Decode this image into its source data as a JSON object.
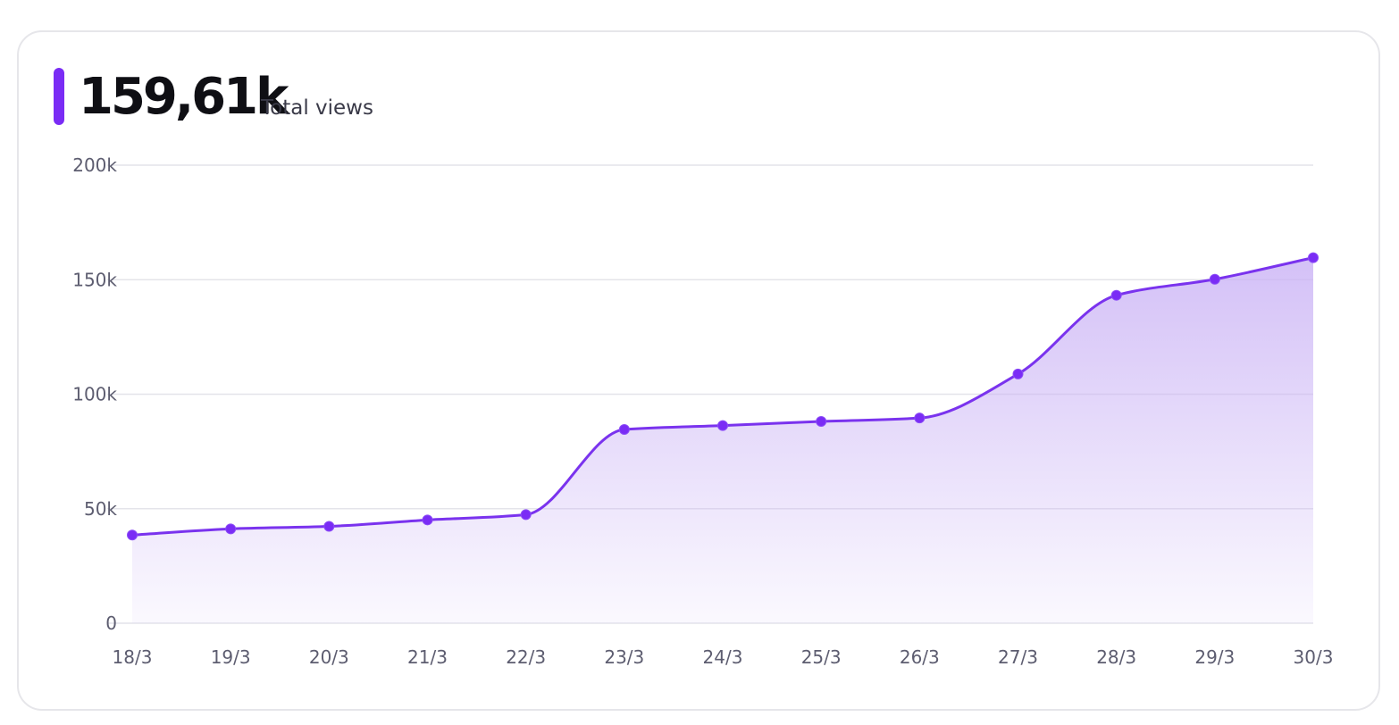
{
  "header": {
    "total_value": "159,61k",
    "total_label": "Total views"
  },
  "colors": {
    "accent": "#7a2cf5",
    "line": "#7a33ee",
    "area_top": "#c9b1f5",
    "grid": "#e4e4ea",
    "tick_text": "#5d5d70",
    "card_border": "#e6e6ea"
  },
  "chart_data": {
    "type": "area",
    "x": [
      "18/3",
      "19/3",
      "20/3",
      "21/3",
      "22/3",
      "23/3",
      "24/3",
      "25/3",
      "26/3",
      "27/3",
      "28/3",
      "29/3",
      "30/3"
    ],
    "series": [
      {
        "values": [
          38500,
          41200,
          42300,
          45100,
          47400,
          84600,
          86300,
          88100,
          89600,
          108800,
          143200,
          150200,
          159610
        ]
      }
    ],
    "ylim": [
      0,
      200000
    ],
    "y_ticks": [
      0,
      50000,
      100000,
      150000,
      200000
    ],
    "y_tick_labels": [
      "0",
      "50k",
      "100k",
      "150k",
      "200k"
    ],
    "grid": true,
    "legend": "none",
    "markers": true,
    "curve": "smooth"
  }
}
